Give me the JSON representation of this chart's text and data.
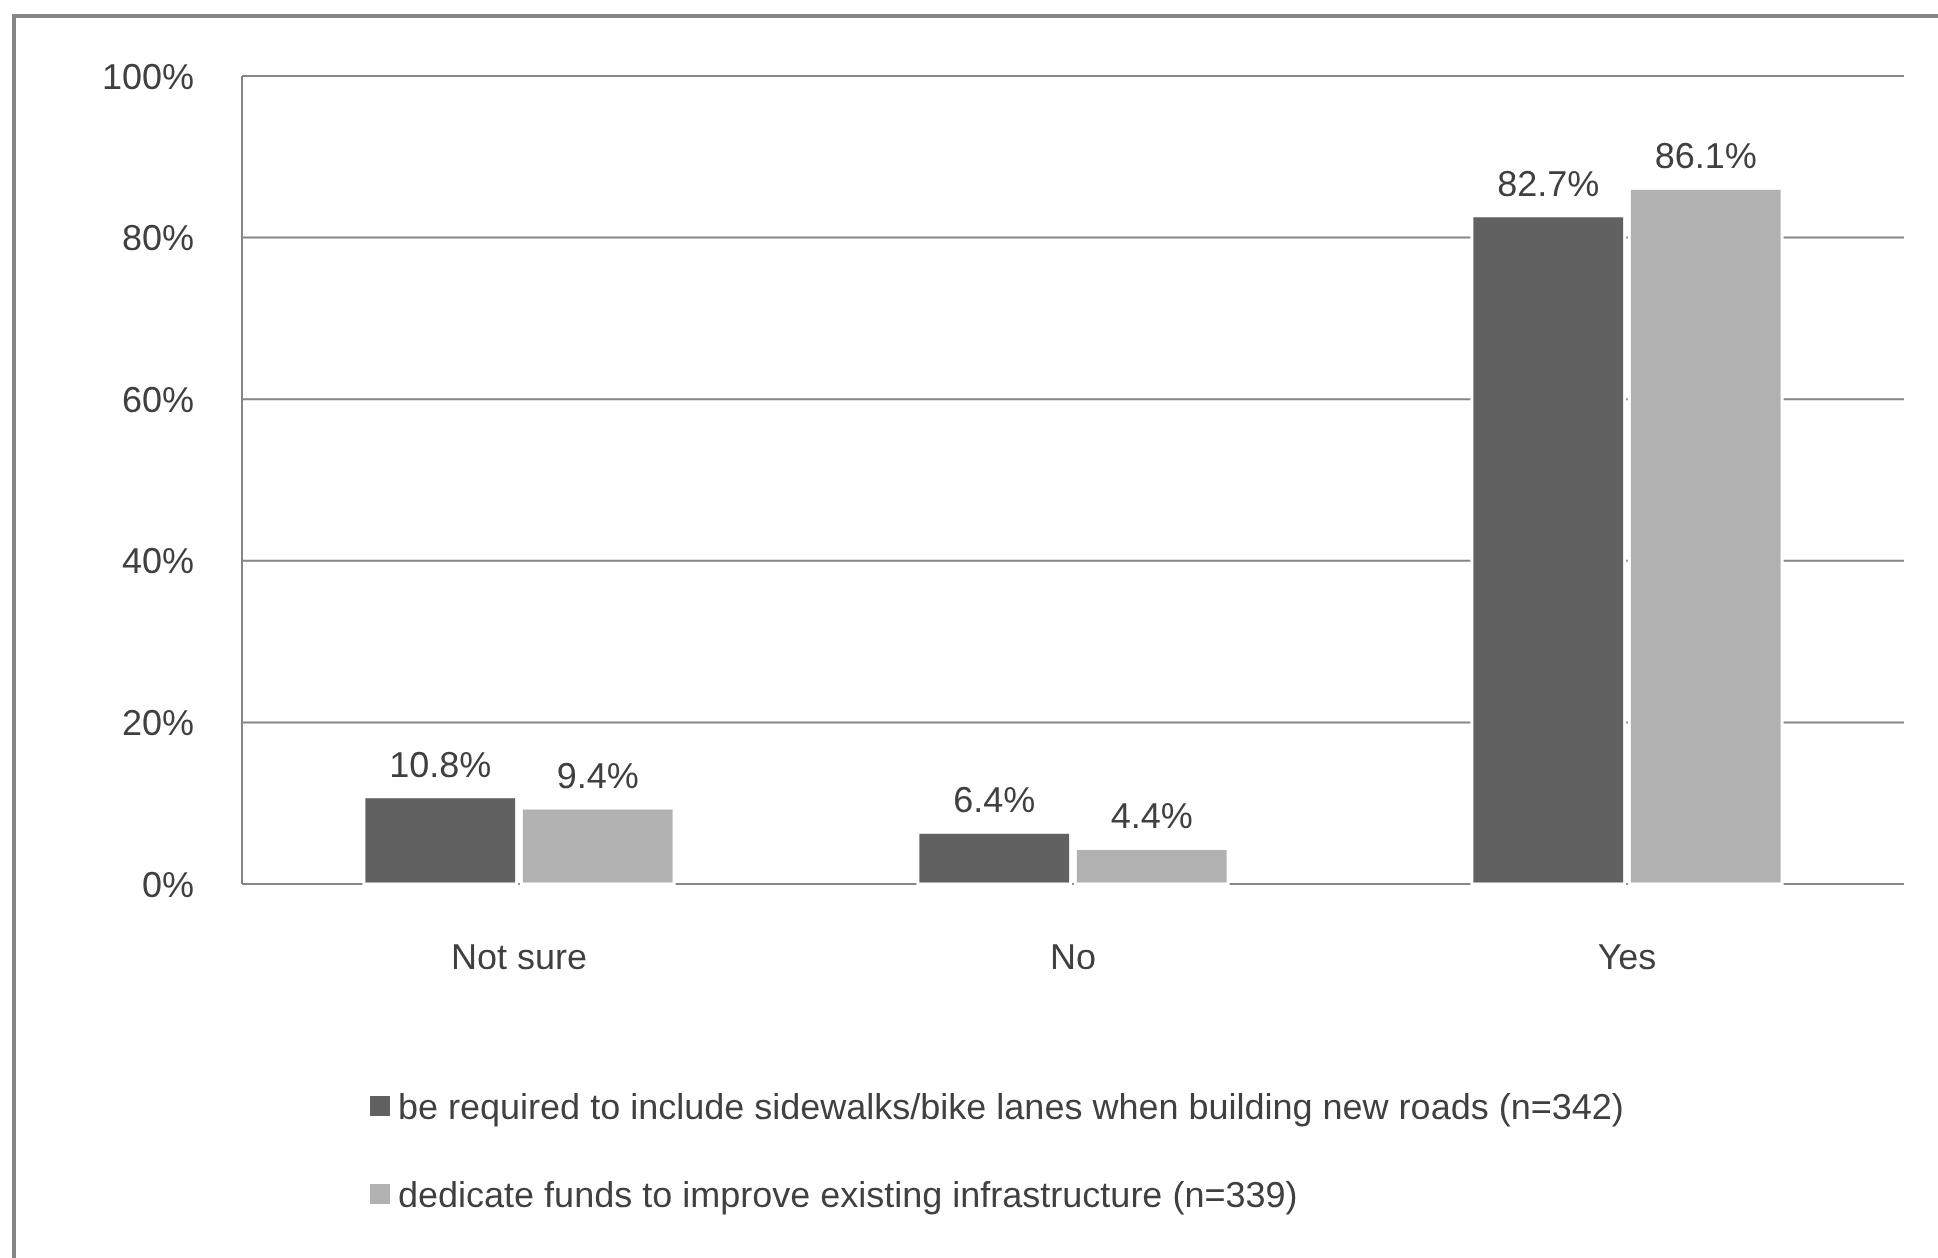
{
  "chart_data": {
    "type": "bar",
    "categories": [
      "Not sure",
      "No",
      "Yes"
    ],
    "series": [
      {
        "name": "be required to include sidewalks/bike lanes when building new roads (n=342)",
        "color": "#616161",
        "values": [
          10.8,
          6.4,
          82.7
        ],
        "value_labels": [
          "10.8%",
          "6.4%",
          "82.7%"
        ]
      },
      {
        "name": "dedicate funds to improve existing infrastructure (n=339)",
        "color": "#b1b1b1",
        "values": [
          9.4,
          4.4,
          86.1
        ],
        "value_labels": [
          "9.4%",
          "4.4%",
          "86.1%"
        ]
      }
    ],
    "ylim": [
      0,
      100
    ],
    "yticks": [
      {
        "value": 0,
        "label": "0%"
      },
      {
        "value": 20,
        "label": "20%"
      },
      {
        "value": 40,
        "label": "40%"
      },
      {
        "value": 60,
        "label": "60%"
      },
      {
        "value": 80,
        "label": "80%"
      },
      {
        "value": 100,
        "label": "100%"
      }
    ],
    "grid": "y",
    "legend": "bottom"
  }
}
